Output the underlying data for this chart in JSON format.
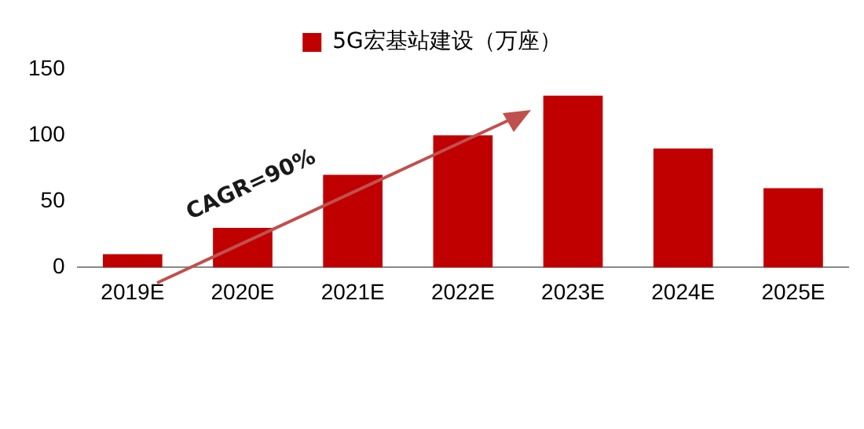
{
  "chart_data": {
    "type": "bar",
    "categories": [
      "2019E",
      "2020E",
      "2021E",
      "2022E",
      "2023E",
      "2024E",
      "2025E"
    ],
    "series": [
      {
        "name": "5G宏基站建设（万座）",
        "color": "#c00000",
        "values": [
          10,
          30,
          70,
          100,
          130,
          90,
          60
        ]
      }
    ],
    "ylim": [
      0,
      150
    ],
    "yticks": [
      0,
      50,
      100,
      150
    ],
    "grid": false,
    "legend": "top",
    "annotations": [
      "CAGR=90%"
    ]
  }
}
